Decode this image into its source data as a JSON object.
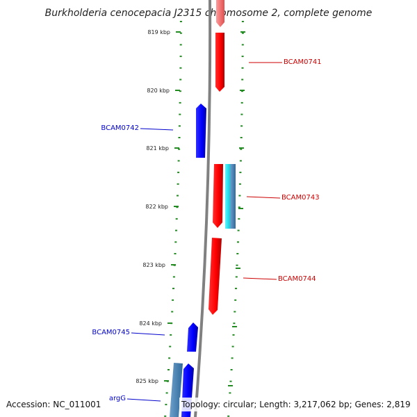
{
  "title": "Burkholderia cenocepacia J2315 chromosome 2, complete genome",
  "footer": {
    "accession": "Accession: NC_011001",
    "topology": "Topology: circular; Length: 3,217,062 bp; Genes: 2,819"
  },
  "colors": {
    "forward_strand": "#ff0000",
    "reverse_strand": "#0000ff",
    "rna_cyan": "#00e5ee",
    "rna_steel": "#4682b4",
    "tick_green": "#228b22",
    "backbone": "#808080"
  },
  "ticks": [
    {
      "label": "819 kbp"
    },
    {
      "label": "820 kbp"
    },
    {
      "label": "821 kbp"
    },
    {
      "label": "822 kbp"
    },
    {
      "label": "823 kbp"
    },
    {
      "label": "824 kbp"
    },
    {
      "label": "825 kbp"
    }
  ],
  "genes": [
    {
      "label": "BCAM0741",
      "strand": "forward"
    },
    {
      "label": "BCAM0742",
      "strand": "reverse"
    },
    {
      "label": "BCAM0743",
      "strand": "forward"
    },
    {
      "label": "BCAM0744",
      "strand": "forward"
    },
    {
      "label": "BCAM0745",
      "strand": "reverse"
    },
    {
      "label": "argG",
      "strand": "reverse"
    }
  ]
}
